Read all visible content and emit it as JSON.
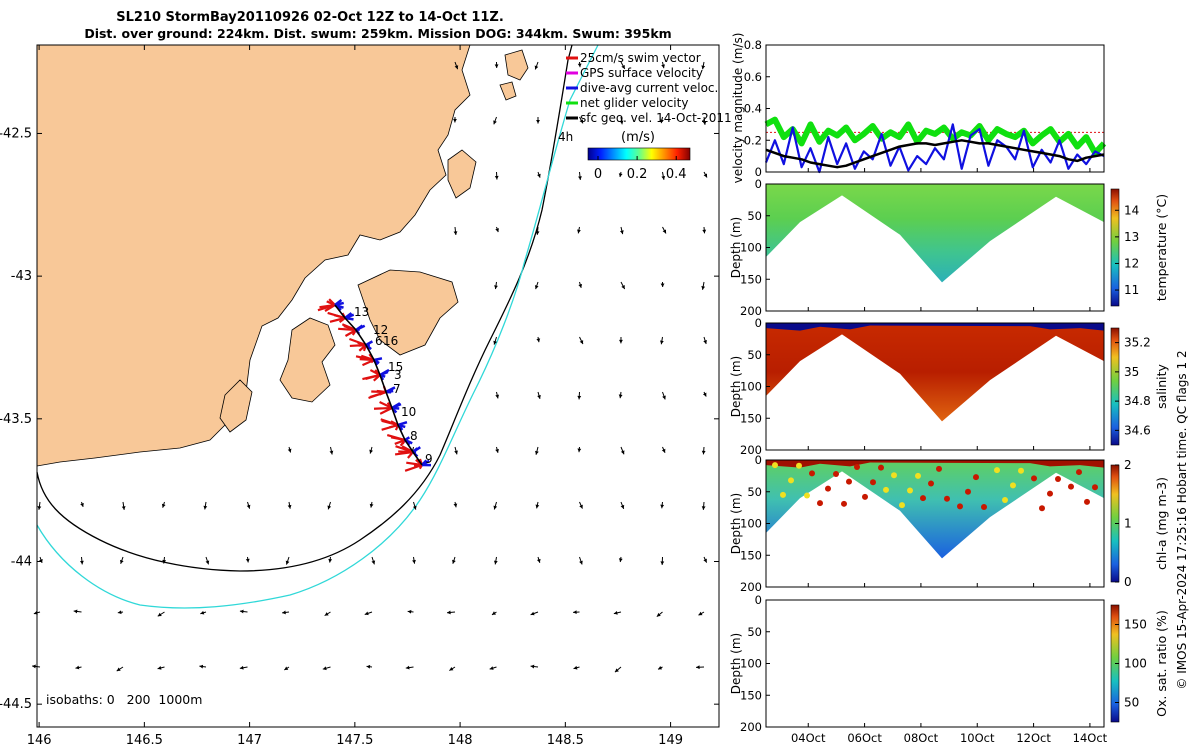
{
  "chart_data": [
    {
      "type": "map",
      "title": "SL210 StormBay20110926 02-Oct 12Z to 14-Oct 11Z.",
      "subtitle": "Dist. over ground: 224km. Dist. swum: 259km. Mission DOG: 344km. Swum: 395km",
      "x_ticks": [
        "146",
        "146.5",
        "147",
        "147.5",
        "148",
        "148.5",
        "149"
      ],
      "y_ticks": [
        "-42.5",
        "-43",
        "-43.5",
        "-44",
        "-44.5"
      ],
      "xlim": [
        145.99,
        149.23
      ],
      "ylim": [
        -44.58,
        -42.19
      ],
      "legend": [
        {
          "label": "25cm/s swim vector",
          "color": "#e01010"
        },
        {
          "label": "GPS surface velocity",
          "color": "#e000e0"
        },
        {
          "label": "dive-avg current veloc.",
          "color": "#1010e0"
        },
        {
          "label": "net glider velocity",
          "color": "#10e010"
        },
        {
          "label": "sfc geo. vel. 14-Oct-2011",
          "color": "#000000"
        }
      ],
      "colorbar": {
        "label": "(m/s)",
        "ticks": [
          "0",
          "0.2",
          "0.4"
        ]
      },
      "annotations": [
        "4h",
        "isobaths: 0   200  1000m"
      ],
      "track_labels": [
        "13",
        "12",
        "6",
        "16",
        "15",
        "3",
        "7",
        "10",
        "8",
        "9"
      ],
      "colors": {
        "land": "#f8c898",
        "isobath_200": "#000000",
        "isobath_1000": "#30d8d8"
      }
    },
    {
      "type": "line",
      "ylabel": "velocity magnitude (m/s)",
      "ylim": [
        0,
        0.8
      ],
      "y_ticks": [
        "0",
        "0.2",
        "0.4",
        "0.6",
        "0.8"
      ],
      "reference_line": 0.25,
      "series": [
        {
          "color": "#10e010",
          "values": [
            0.3,
            0.33,
            0.22,
            0.27,
            0.18,
            0.3,
            0.19,
            0.26,
            0.23,
            0.28,
            0.2,
            0.24,
            0.29,
            0.21,
            0.25,
            0.22,
            0.3,
            0.19,
            0.26,
            0.24,
            0.28,
            0.21,
            0.25,
            0.23,
            0.29,
            0.2,
            0.27,
            0.24,
            0.22,
            0.26,
            0.18,
            0.23,
            0.27,
            0.19,
            0.24,
            0.16,
            0.22,
            0.12,
            0.18
          ]
        },
        {
          "color": "#1010e0",
          "values": [
            0.06,
            0.2,
            0.05,
            0.28,
            0.03,
            0.15,
            0.0,
            0.22,
            0.05,
            0.18,
            0.02,
            0.13,
            0.08,
            0.24,
            0.04,
            0.16,
            0.01,
            0.1,
            0.05,
            0.15,
            0.08,
            0.3,
            0.02,
            0.23,
            0.27,
            0.04,
            0.2,
            0.16,
            0.08,
            0.26,
            0.03,
            0.14,
            0.06,
            0.2,
            0.02,
            0.11,
            0.05,
            0.13,
            0.1
          ]
        },
        {
          "color": "#000000",
          "values": [
            0.14,
            0.12,
            0.1,
            0.09,
            0.08,
            0.06,
            0.05,
            0.04,
            0.03,
            0.04,
            0.06,
            0.08,
            0.1,
            0.12,
            0.14,
            0.16,
            0.17,
            0.18,
            0.18,
            0.17,
            0.18,
            0.19,
            0.2,
            0.19,
            0.18,
            0.18,
            0.17,
            0.16,
            0.15,
            0.14,
            0.13,
            0.12,
            0.11,
            0.1,
            0.08,
            0.07,
            0.09,
            0.1,
            0.11
          ]
        }
      ]
    },
    {
      "type": "heatmap",
      "ylabel": "Depth (m)",
      "colorbar_label": "temperature (°C)",
      "y_ticks": [
        "0",
        "50",
        "100",
        "150",
        "200"
      ],
      "colorbar_ticks": [
        "11",
        "12",
        "13",
        "14"
      ],
      "colorbar_range": [
        10.4,
        14.8
      ]
    },
    {
      "type": "heatmap",
      "ylabel": "Depth (m)",
      "colorbar_label": "salinity",
      "y_ticks": [
        "0",
        "50",
        "100",
        "150",
        "200"
      ],
      "colorbar_ticks": [
        "34.6",
        "34.8",
        "35",
        "35.2"
      ],
      "colorbar_range": [
        34.5,
        35.3
      ]
    },
    {
      "type": "heatmap",
      "ylabel": "Depth (m)",
      "colorbar_label": "chl-a (mg m-3)",
      "y_ticks": [
        "0",
        "50",
        "100",
        "150",
        "200"
      ],
      "colorbar_ticks": [
        "0",
        "1",
        "2"
      ],
      "colorbar_range": [
        0,
        2
      ]
    },
    {
      "type": "heatmap",
      "ylabel": "Depth (m)",
      "colorbar_label": "Ox. sat. ratio (%)",
      "y_ticks": [
        "0",
        "50",
        "100",
        "150",
        "200"
      ],
      "colorbar_ticks": [
        "50",
        "100",
        "150"
      ],
      "colorbar_range": [
        25,
        175
      ]
    }
  ],
  "time_axis": {
    "ticks": [
      "04Oct",
      "06Oct",
      "08Oct",
      "10Oct",
      "12Oct",
      "14Oct"
    ],
    "xlim": [
      2.5,
      14.5
    ]
  },
  "side_note": "© IMOS 15-Apr-2024 17:25:16 Hobart time. QC flags 1  2"
}
